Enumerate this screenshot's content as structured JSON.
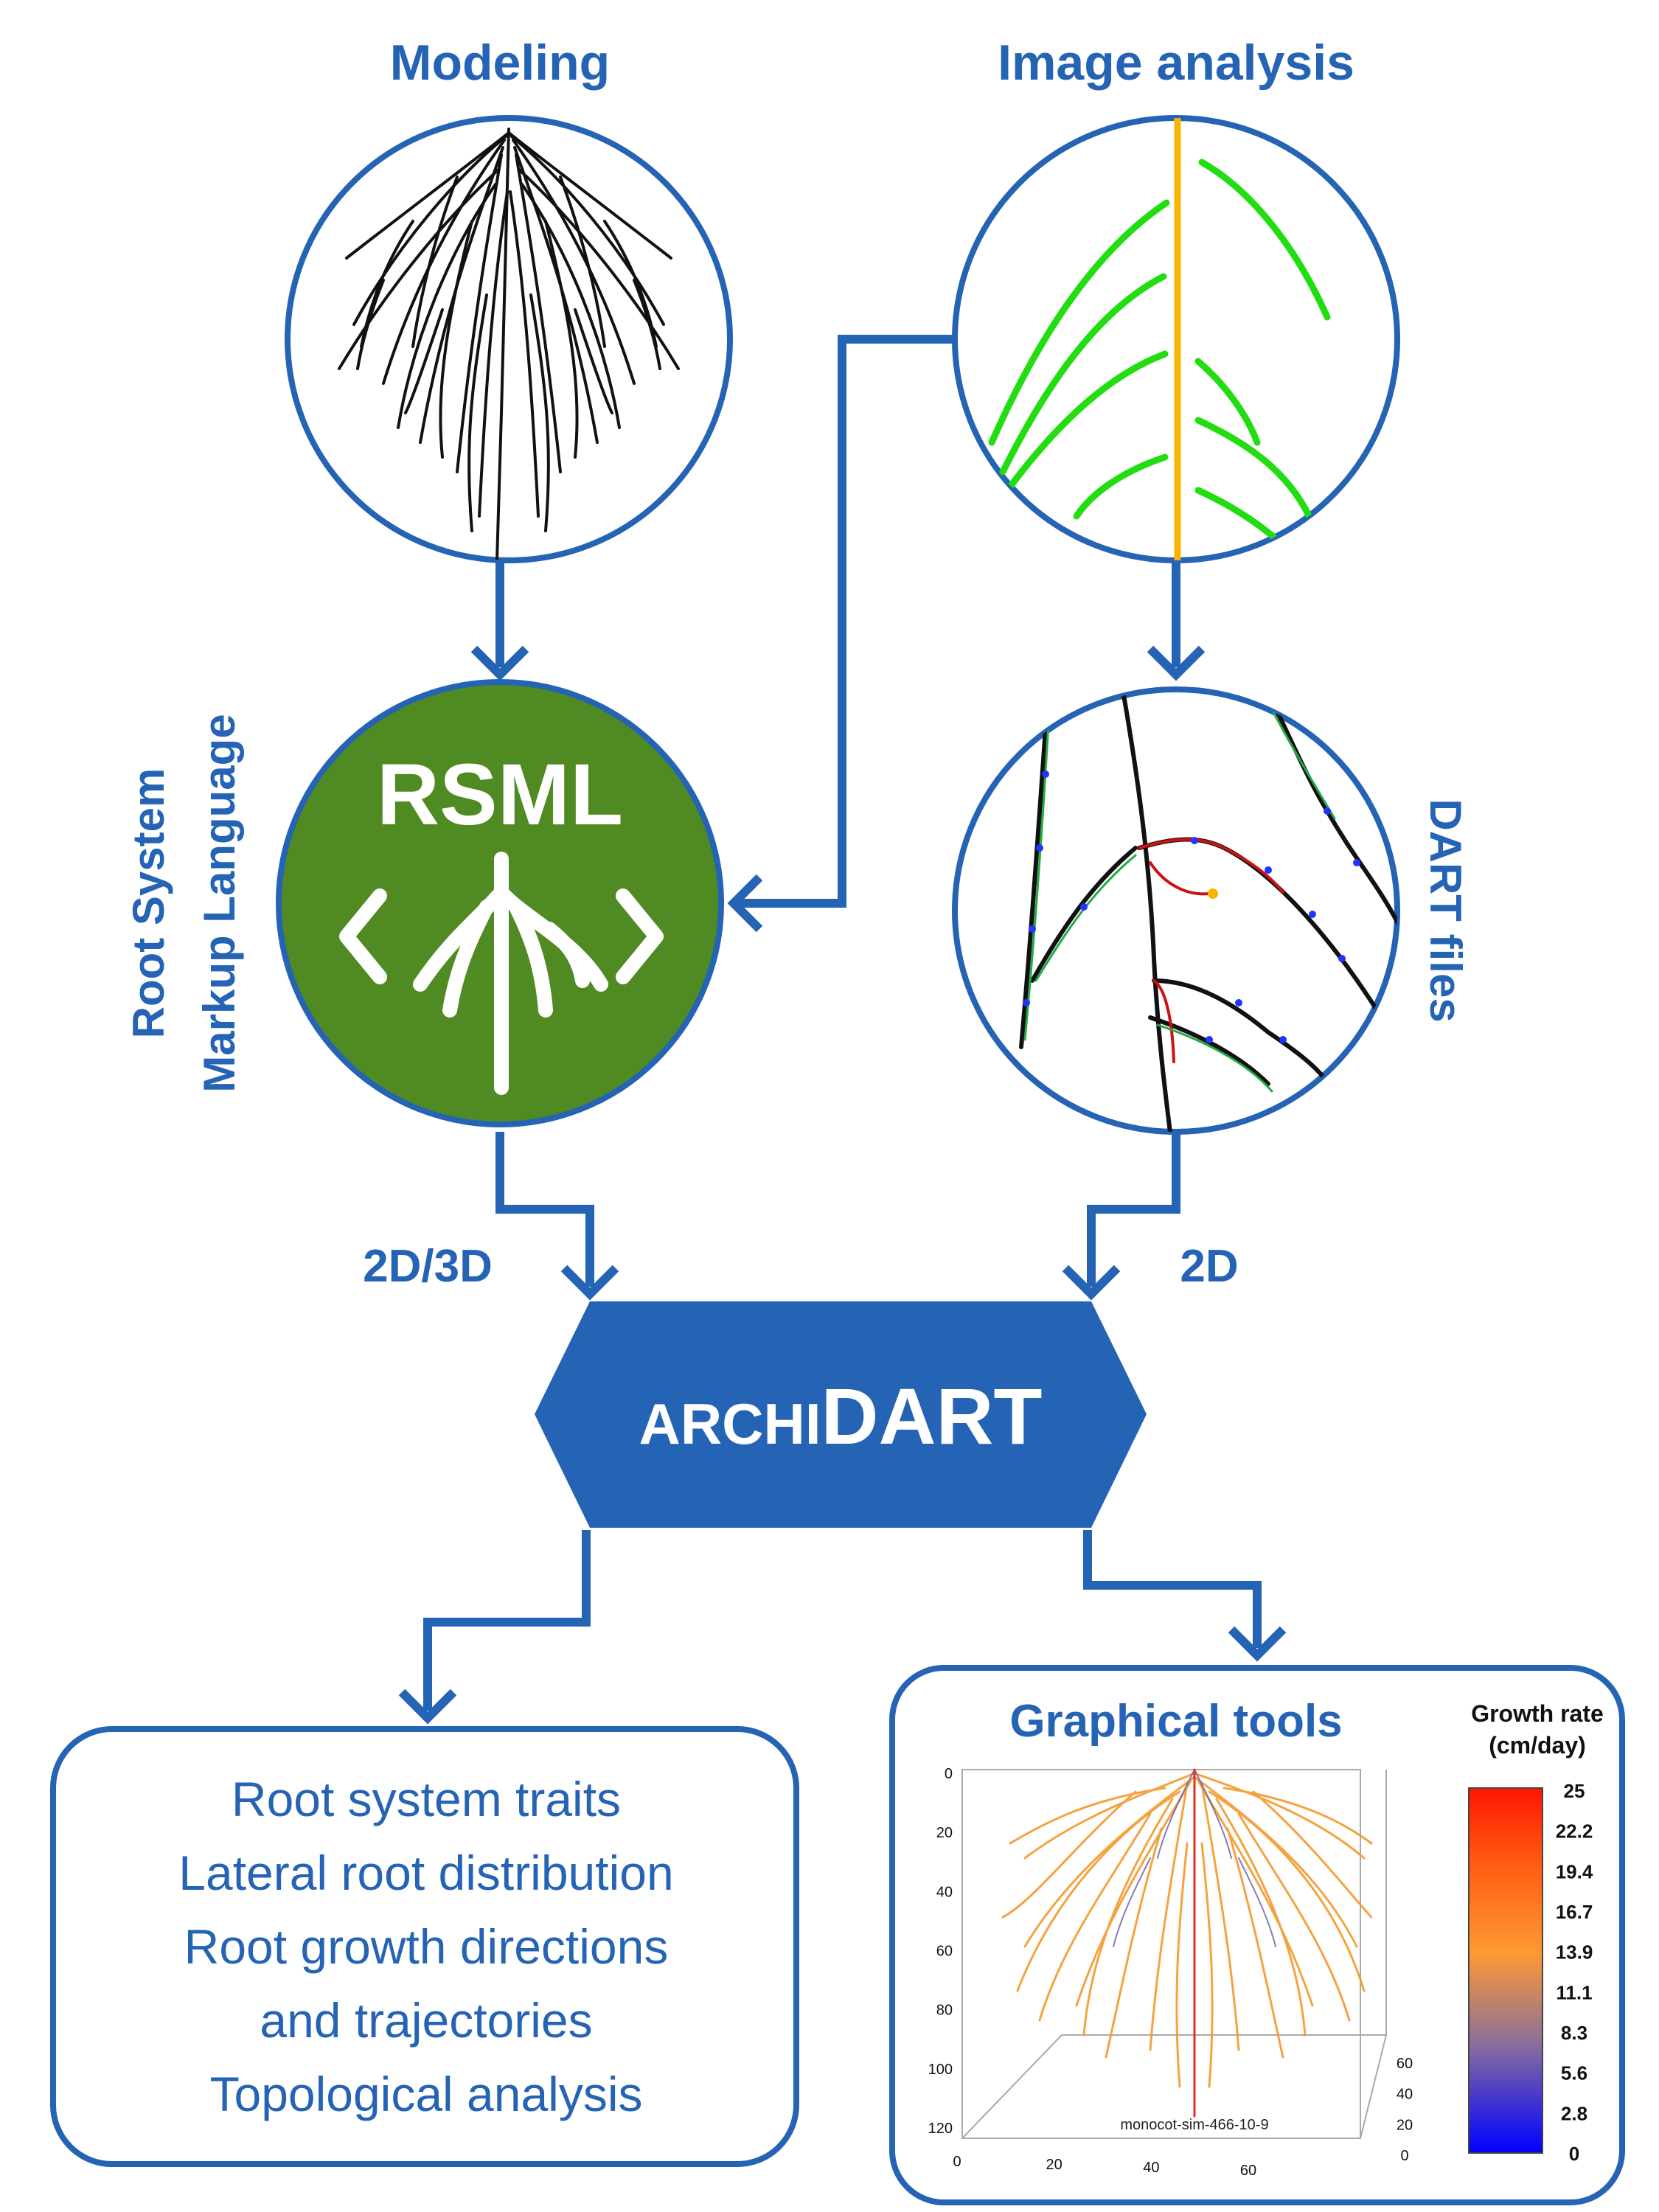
{
  "titles": {
    "modeling": "Modeling",
    "image_analysis": "Image analysis"
  },
  "side_labels": {
    "rsml_line1": "Root System",
    "rsml_line2": "Markup Language",
    "dart_files": "DART files"
  },
  "rsml_logo": {
    "text": "RSML"
  },
  "flow_labels": {
    "left": "2D/3D",
    "right": "2D"
  },
  "archidart": {
    "small": "ARCHI",
    "large": "DART"
  },
  "analysis_box": {
    "lines": [
      "Root system traits",
      "Lateral root distribution",
      "Root growth directions",
      "and trajectories",
      "Topological analysis"
    ]
  },
  "graphical_tools": {
    "title": "Graphical tools",
    "legend_title_line1": "Growth rate",
    "legend_title_line2": "(cm/day)",
    "legend_ticks": [
      "25",
      "22.2",
      "19.4",
      "16.7",
      "13.9",
      "11.1",
      "8.3",
      "5.6",
      "2.8",
      "0"
    ],
    "plot_label": "monocot-sim-466-10-9",
    "z_ticks": [
      "0",
      "20",
      "40",
      "60",
      "80",
      "100",
      "120"
    ],
    "x_ticks": [
      "0",
      "20",
      "40",
      "60"
    ],
    "y_ticks": [
      "0",
      "20",
      "40",
      "60"
    ]
  },
  "colors": {
    "accent_blue": "#2563b5",
    "rsml_green": "#4f8a22",
    "trace_green": "#22dd11",
    "trace_orange": "#f7b500"
  }
}
